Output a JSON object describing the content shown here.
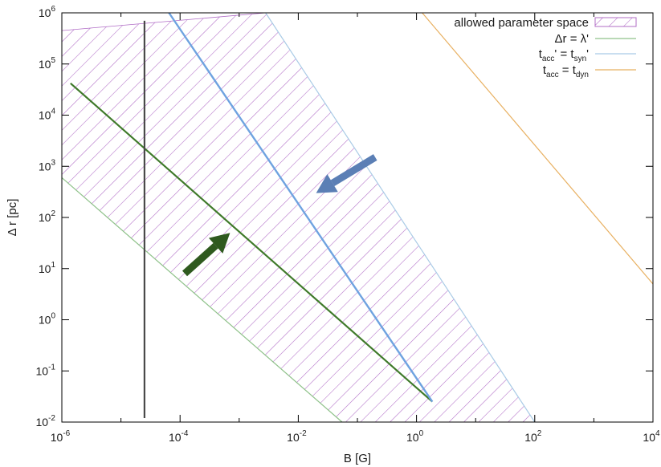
{
  "chart_data": {
    "type": "line",
    "xlabel": "B [G]",
    "ylabel": "Δ r  [pc]",
    "x_scale": "log",
    "y_scale": "log",
    "xlim": [
      1e-06,
      10000.0
    ],
    "ylim": [
      0.01,
      1000000.0
    ],
    "x_ticks": [
      {
        "base": "10",
        "exp": "-6",
        "value": 1e-06
      },
      {
        "base": "10",
        "exp": "-4",
        "value": 0.0001
      },
      {
        "base": "10",
        "exp": "-2",
        "value": 0.01
      },
      {
        "base": "10",
        "exp": "0",
        "value": 1
      },
      {
        "base": "10",
        "exp": "2",
        "value": 100.0
      },
      {
        "base": "10",
        "exp": "4",
        "value": 10000.0
      }
    ],
    "y_ticks": [
      {
        "base": "10",
        "exp": "-2",
        "value": 0.01
      },
      {
        "base": "10",
        "exp": "-1",
        "value": 0.1
      },
      {
        "base": "10",
        "exp": "0",
        "value": 1
      },
      {
        "base": "10",
        "exp": "1",
        "value": 10.0
      },
      {
        "base": "10",
        "exp": "2",
        "value": 100.0
      },
      {
        "base": "10",
        "exp": "3",
        "value": 1000.0
      },
      {
        "base": "10",
        "exp": "4",
        "value": 10000.0
      },
      {
        "base": "10",
        "exp": "5",
        "value": 100000.0
      },
      {
        "base": "10",
        "exp": "6",
        "value": 1000000.0
      }
    ],
    "grid": false,
    "legend_position": "top-right",
    "legend": [
      {
        "key": "allowed",
        "parts": [
          {
            "t": "allowed parameter space"
          }
        ],
        "swatch": "hatch",
        "color": "#b06cc6"
      },
      {
        "key": "lambda",
        "parts": [
          {
            "t": "Δr = λ'"
          }
        ],
        "swatch": "line",
        "color": "#8fc28a"
      },
      {
        "key": "syn",
        "parts": [
          {
            "t": "t"
          },
          {
            "t": "acc",
            "sub": true
          },
          {
            "t": "' = t"
          },
          {
            "t": "syn",
            "sub": true
          },
          {
            "t": "'"
          }
        ],
        "swatch": "line",
        "color": "#a9cbe6"
      },
      {
        "key": "dyn",
        "parts": [
          {
            "t": "t"
          },
          {
            "t": "acc",
            "sub": true
          },
          {
            "t": " = t"
          },
          {
            "t": "dyn",
            "sub": true
          }
        ],
        "swatch": "line",
        "color": "#e8b061"
      }
    ],
    "region": {
      "name": "allowed parameter space",
      "color": "#b06cc6",
      "polygon": [
        [
          1e-06,
          450000.0
        ],
        [
          0.0028,
          1000000.0
        ],
        [
          100,
          0.01
        ],
        [
          0.055,
          0.01
        ],
        [
          1e-06,
          600
        ]
      ]
    },
    "series": [
      {
        "key": "lambda",
        "name": "Δr = λ'",
        "color": "#8fc28a",
        "x": [
          1e-06,
          0.055
        ],
        "y": [
          600,
          0.01
        ]
      },
      {
        "key": "syn",
        "name": "t_acc' = t_syn'",
        "color": "#a9cbe6",
        "x": [
          0.0028,
          100
        ],
        "y": [
          1000000.0,
          0.01
        ]
      },
      {
        "key": "dyn",
        "name": "t_acc = t_dyn",
        "color": "#e8b061",
        "x": [
          1.25,
          10000.0
        ],
        "y": [
          1000000.0,
          5
        ]
      },
      {
        "key": "upper",
        "color": "#b06cc6",
        "x": [
          1e-06,
          0.0028
        ],
        "y": [
          450000.0,
          1000000.0
        ]
      },
      {
        "key": "green-dark",
        "color": "#3f7a2a",
        "x": [
          1.4e-06,
          1.85
        ],
        "y": [
          42000.0,
          0.025
        ]
      },
      {
        "key": "blue-dark",
        "color": "#6fa3e0",
        "x": [
          6.5e-05,
          1.85
        ],
        "y": [
          1000000.0,
          0.025
        ]
      },
      {
        "key": "vertical",
        "color": "#4a4a4a",
        "x": [
          2.5e-05,
          2.5e-05
        ],
        "y": [
          0.012,
          700000.0
        ]
      }
    ],
    "arrows": [
      {
        "key": "arrow-up",
        "color": "#2f5a1f",
        "from": [
          0.00012,
          8
        ],
        "to": [
          0.0007,
          50
        ]
      },
      {
        "key": "arrow-down",
        "color": "#5b7fb5",
        "from": [
          0.2,
          1500
        ],
        "to": [
          0.02,
          300
        ]
      }
    ]
  }
}
